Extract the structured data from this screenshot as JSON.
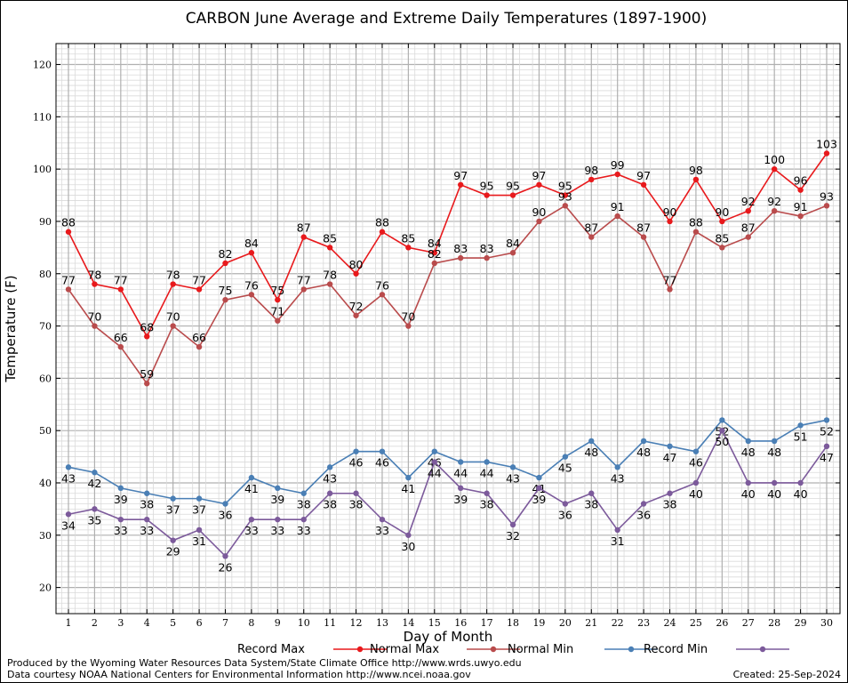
{
  "chart_data": {
    "type": "line",
    "title": "CARBON June Average and Extreme Daily Temperatures (1897-1900)",
    "xlabel": "Day of Month",
    "ylabel": "Temperature (F)",
    "categories": [
      "1",
      "2",
      "3",
      "4",
      "5",
      "6",
      "7",
      "8",
      "9",
      "10",
      "11",
      "12",
      "13",
      "14",
      "15",
      "16",
      "17",
      "18",
      "19",
      "20",
      "21",
      "22",
      "23",
      "24",
      "25",
      "26",
      "27",
      "28",
      "29",
      "30"
    ],
    "ylim": [
      15,
      124
    ],
    "yticks": [
      20,
      30,
      40,
      50,
      60,
      70,
      80,
      90,
      100,
      110,
      120
    ],
    "grid": true,
    "legend_position": "bottom",
    "series": [
      {
        "name": "Record Max",
        "color": "#e8191c",
        "values": [
          88,
          78,
          77,
          68,
          78,
          77,
          82,
          84,
          75,
          87,
          85,
          80,
          88,
          85,
          84,
          97,
          95,
          95,
          97,
          95,
          98,
          99,
          97,
          90,
          98,
          90,
          92,
          100,
          96,
          103
        ]
      },
      {
        "name": "Normal Max",
        "color": "#b94b4c",
        "values": [
          77,
          70,
          66,
          59,
          70,
          66,
          75,
          76,
          71,
          77,
          78,
          72,
          76,
          70,
          82,
          83,
          83,
          84,
          90,
          93,
          87,
          91,
          87,
          77,
          88,
          85,
          87,
          92,
          91,
          93
        ]
      },
      {
        "name": "Normal Min",
        "color": "#4a7fb5",
        "values": [
          43,
          42,
          39,
          38,
          37,
          37,
          36,
          41,
          39,
          38,
          43,
          46,
          46,
          41,
          46,
          44,
          44,
          43,
          41,
          45,
          48,
          43,
          48,
          47,
          46,
          52,
          48,
          48,
          51,
          52
        ]
      },
      {
        "name": "Record Min",
        "color": "#7c5a9b",
        "values": [
          34,
          35,
          33,
          33,
          29,
          31,
          26,
          33,
          33,
          33,
          38,
          38,
          33,
          30,
          44,
          39,
          38,
          32,
          39,
          36,
          38,
          31,
          36,
          38,
          40,
          50,
          40,
          40,
          40,
          47
        ]
      }
    ]
  },
  "footer": {
    "produced_by": "Produced by the Wyoming Water Resources Data System/State Climate Office http://www.wrds.uwyo.edu",
    "data_courtesy": "Data courtesy NOAA National Centers for Environmental Information http://www.ncei.noaa.gov",
    "created": "Created: 25-Sep-2024"
  }
}
